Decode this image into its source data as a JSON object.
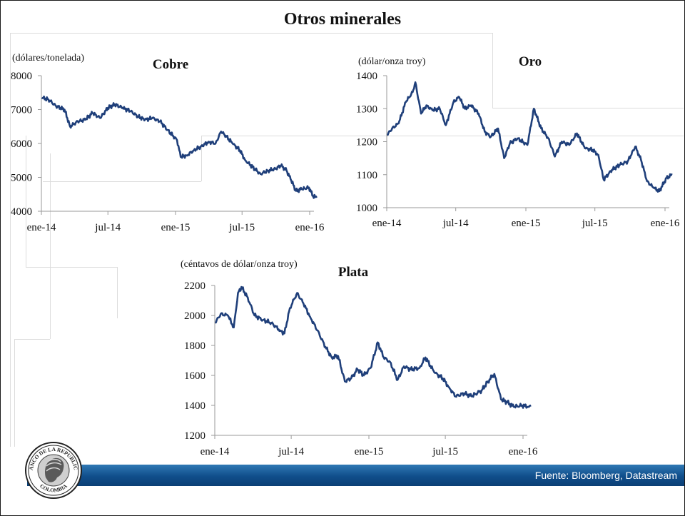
{
  "page": {
    "title": "Otros minerales"
  },
  "footer": {
    "source": "Fuente: Bloomberg, Datastream"
  },
  "logo": {
    "text_top": "BANCO DE LA REPUBLICA",
    "text_bottom": "COLOMBIA"
  },
  "colors": {
    "line": "#1f3f7a",
    "footer_bar": "#104e8b",
    "axis": "#9a9a9a"
  },
  "chart_data": [
    {
      "id": "cobre",
      "type": "line",
      "title": "Cobre",
      "unit_label": "(dólares/tonelada)",
      "x_ticks": [
        "ene-14",
        "jul-14",
        "ene-15",
        "jul-15",
        "ene-16"
      ],
      "ylim": [
        4000,
        8000
      ],
      "y_ticks": [
        "4000",
        "5000",
        "6000",
        "7000",
        "8000"
      ],
      "y_tick_values": [
        4000,
        5000,
        6000,
        7000,
        8000
      ],
      "grid": false,
      "series": [
        {
          "points": [
            [
              "2014-01-02",
              7350
            ],
            [
              "2014-01-20",
              7300
            ],
            [
              "2014-02-10",
              7100
            ],
            [
              "2014-03-05",
              7000
            ],
            [
              "2014-03-20",
              6500
            ],
            [
              "2014-04-10",
              6650
            ],
            [
              "2014-05-01",
              6700
            ],
            [
              "2014-05-20",
              6900
            ],
            [
              "2014-06-10",
              6750
            ],
            [
              "2014-07-01",
              7050
            ],
            [
              "2014-07-20",
              7150
            ],
            [
              "2014-08-10",
              7050
            ],
            [
              "2014-09-01",
              6950
            ],
            [
              "2014-09-20",
              6800
            ],
            [
              "2014-10-10",
              6700
            ],
            [
              "2014-10-30",
              6750
            ],
            [
              "2014-11-20",
              6650
            ],
            [
              "2014-12-10",
              6400
            ],
            [
              "2015-01-05",
              6100
            ],
            [
              "2015-01-15",
              5600
            ],
            [
              "2015-02-01",
              5650
            ],
            [
              "2015-02-20",
              5800
            ],
            [
              "2015-03-10",
              5900
            ],
            [
              "2015-04-01",
              6050
            ],
            [
              "2015-04-20",
              6000
            ],
            [
              "2015-05-05",
              6350
            ],
            [
              "2015-05-20",
              6200
            ],
            [
              "2015-06-05",
              6000
            ],
            [
              "2015-06-25",
              5800
            ],
            [
              "2015-07-10",
              5500
            ],
            [
              "2015-07-30",
              5300
            ],
            [
              "2015-08-20",
              5100
            ],
            [
              "2015-09-10",
              5200
            ],
            [
              "2015-09-30",
              5250
            ],
            [
              "2015-10-15",
              5350
            ],
            [
              "2015-10-30",
              5200
            ],
            [
              "2015-11-10",
              4950
            ],
            [
              "2015-11-25",
              4600
            ],
            [
              "2015-12-10",
              4650
            ],
            [
              "2015-12-30",
              4700
            ],
            [
              "2016-01-10",
              4450
            ],
            [
              "2016-01-20",
              4400
            ]
          ]
        }
      ]
    },
    {
      "id": "oro",
      "type": "line",
      "title": "Oro",
      "unit_label": "(dólar/onza troy)",
      "x_ticks": [
        "ene-14",
        "jul-14",
        "ene-15",
        "jul-15",
        "ene-16"
      ],
      "ylim": [
        1000,
        1400
      ],
      "y_ticks": [
        "1000",
        "1100",
        "1200",
        "1300",
        "1400"
      ],
      "y_tick_values": [
        1000,
        1100,
        1200,
        1300,
        1400
      ],
      "grid": false,
      "series": [
        {
          "points": [
            [
              "2014-01-02",
              1220
            ],
            [
              "2014-01-15",
              1240
            ],
            [
              "2014-02-01",
              1255
            ],
            [
              "2014-02-20",
              1320
            ],
            [
              "2014-03-10",
              1350
            ],
            [
              "2014-03-17",
              1380
            ],
            [
              "2014-04-01",
              1285
            ],
            [
              "2014-04-15",
              1310
            ],
            [
              "2014-05-01",
              1295
            ],
            [
              "2014-05-20",
              1300
            ],
            [
              "2014-06-05",
              1250
            ],
            [
              "2014-06-25",
              1320
            ],
            [
              "2014-07-10",
              1335
            ],
            [
              "2014-07-25",
              1300
            ],
            [
              "2014-08-10",
              1310
            ],
            [
              "2014-08-30",
              1285
            ],
            [
              "2014-09-15",
              1230
            ],
            [
              "2014-10-01",
              1215
            ],
            [
              "2014-10-20",
              1240
            ],
            [
              "2014-11-05",
              1150
            ],
            [
              "2014-11-20",
              1195
            ],
            [
              "2014-12-10",
              1210
            ],
            [
              "2015-01-05",
              1190
            ],
            [
              "2015-01-22",
              1300
            ],
            [
              "2015-02-10",
              1240
            ],
            [
              "2015-03-01",
              1210
            ],
            [
              "2015-03-18",
              1155
            ],
            [
              "2015-04-05",
              1200
            ],
            [
              "2015-04-25",
              1190
            ],
            [
              "2015-05-15",
              1225
            ],
            [
              "2015-06-05",
              1180
            ],
            [
              "2015-06-25",
              1175
            ],
            [
              "2015-07-10",
              1160
            ],
            [
              "2015-07-24",
              1085
            ],
            [
              "2015-08-15",
              1115
            ],
            [
              "2015-09-05",
              1130
            ],
            [
              "2015-09-25",
              1140
            ],
            [
              "2015-10-15",
              1185
            ],
            [
              "2015-10-30",
              1145
            ],
            [
              "2015-11-15",
              1080
            ],
            [
              "2015-12-02",
              1060
            ],
            [
              "2015-12-17",
              1050
            ],
            [
              "2016-01-05",
              1090
            ],
            [
              "2016-01-20",
              1100
            ]
          ]
        }
      ]
    },
    {
      "id": "plata",
      "type": "line",
      "title": "Plata",
      "unit_label": "(céntavos de dólar/onza troy)",
      "x_ticks": [
        "ene-14",
        "jul-14",
        "ene-15",
        "jul-15",
        "ene-16"
      ],
      "ylim": [
        1200,
        2200
      ],
      "y_ticks": [
        "1200",
        "1400",
        "1600",
        "1800",
        "2000",
        "2200"
      ],
      "y_tick_values": [
        1200,
        1400,
        1600,
        1800,
        2000,
        2200
      ],
      "grid": false,
      "series": [
        {
          "points": [
            [
              "2014-01-02",
              1950
            ],
            [
              "2014-01-15",
              2010
            ],
            [
              "2014-02-01",
              2000
            ],
            [
              "2014-02-15",
              1920
            ],
            [
              "2014-02-25",
              2150
            ],
            [
              "2014-03-05",
              2190
            ],
            [
              "2014-03-20",
              2120
            ],
            [
              "2014-04-05",
              2000
            ],
            [
              "2014-04-25",
              1970
            ],
            [
              "2014-05-15",
              1950
            ],
            [
              "2014-06-05",
              1900
            ],
            [
              "2014-06-15",
              1880
            ],
            [
              "2014-06-28",
              2050
            ],
            [
              "2014-07-15",
              2150
            ],
            [
              "2014-07-30",
              2080
            ],
            [
              "2014-08-15",
              1990
            ],
            [
              "2014-09-01",
              1900
            ],
            [
              "2014-09-20",
              1790
            ],
            [
              "2014-10-05",
              1720
            ],
            [
              "2014-10-20",
              1730
            ],
            [
              "2014-11-05",
              1560
            ],
            [
              "2014-11-20",
              1580
            ],
            [
              "2014-12-05",
              1640
            ],
            [
              "2014-12-20",
              1600
            ],
            [
              "2015-01-05",
              1650
            ],
            [
              "2015-01-22",
              1820
            ],
            [
              "2015-02-05",
              1720
            ],
            [
              "2015-02-20",
              1690
            ],
            [
              "2015-03-10",
              1570
            ],
            [
              "2015-03-25",
              1660
            ],
            [
              "2015-04-10",
              1640
            ],
            [
              "2015-05-01",
              1650
            ],
            [
              "2015-05-15",
              1720
            ],
            [
              "2015-06-05",
              1620
            ],
            [
              "2015-06-25",
              1580
            ],
            [
              "2015-07-10",
              1520
            ],
            [
              "2015-07-25",
              1460
            ],
            [
              "2015-08-15",
              1480
            ],
            [
              "2015-09-01",
              1460
            ],
            [
              "2015-09-25",
              1500
            ],
            [
              "2015-10-10",
              1560
            ],
            [
              "2015-10-25",
              1610
            ],
            [
              "2015-11-10",
              1440
            ],
            [
              "2015-11-25",
              1420
            ],
            [
              "2015-12-10",
              1390
            ],
            [
              "2015-12-30",
              1400
            ],
            [
              "2016-01-15",
              1390
            ],
            [
              "2016-01-20",
              1400
            ]
          ]
        }
      ]
    }
  ]
}
